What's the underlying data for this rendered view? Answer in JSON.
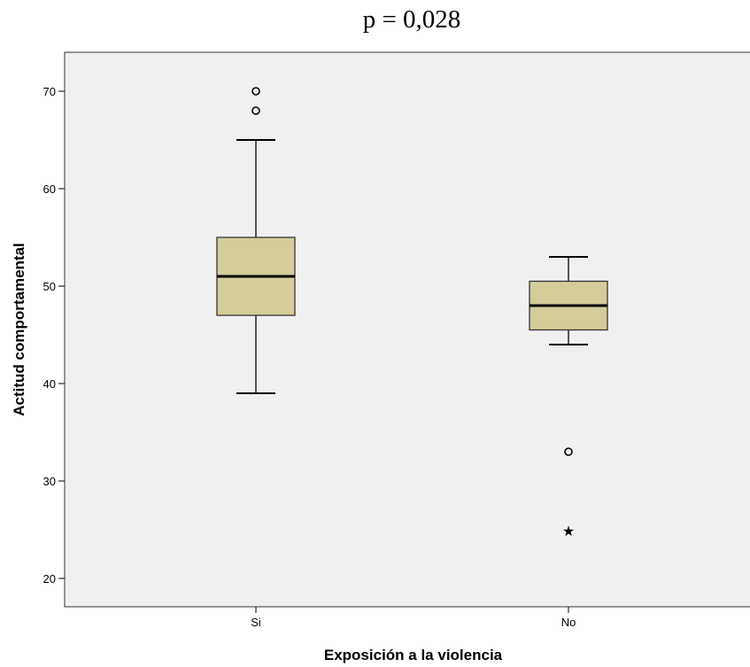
{
  "annotation": "p = 0,028",
  "chart_data": {
    "type": "boxplot",
    "xlabel": "Exposición a la violencia",
    "ylabel": "Actitud comportamental",
    "ylim": [
      18,
      76
    ],
    "yticks": [
      20,
      30,
      40,
      50,
      60,
      70
    ],
    "categories": [
      "Si",
      "No"
    ],
    "boxes": [
      {
        "category": "Si",
        "whisker_low": 39,
        "q1": 47,
        "median": 51,
        "q3": 55,
        "whisker_high": 65,
        "outliers": [
          68,
          70
        ],
        "extremes": []
      },
      {
        "category": "No",
        "whisker_low": 44,
        "q1": 45.5,
        "median": 48,
        "q3": 50.5,
        "whisker_high": 53,
        "outliers": [
          33
        ],
        "extremes": [
          25
        ]
      }
    ],
    "colors": {
      "box_fill": "#d4cd9a",
      "plot_background": "#f0f0f0",
      "line": "#000000"
    }
  }
}
